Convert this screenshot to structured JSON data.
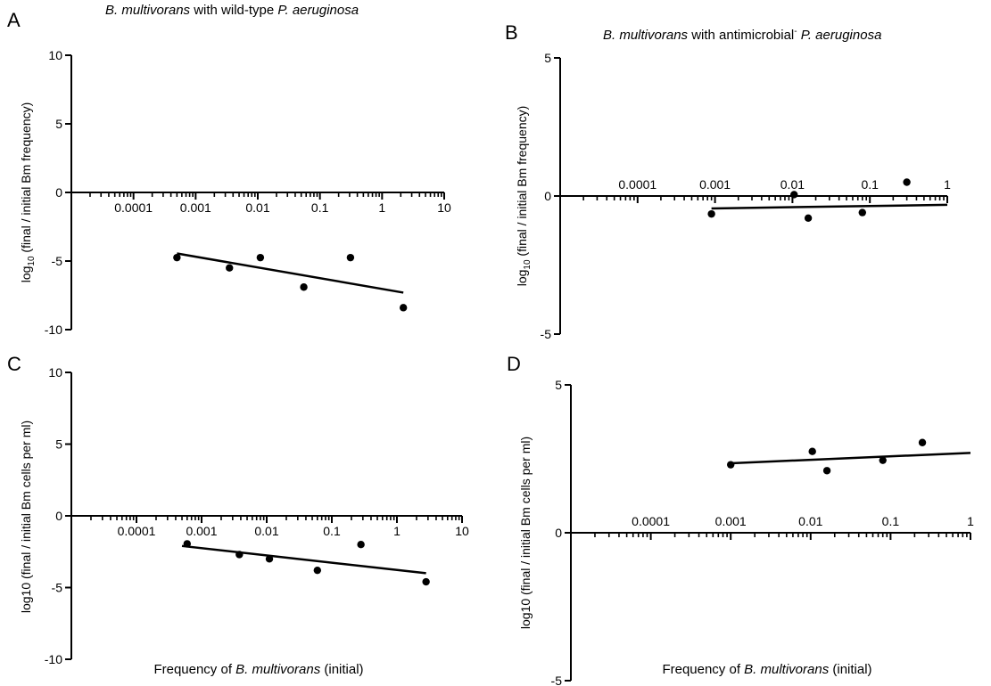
{
  "chart_data": [
    {
      "panel": "A",
      "type": "scatter",
      "title": {
        "prefix": "B. multivorans",
        "middle": " with wild-type ",
        "suffix": "P. aeruginosa"
      },
      "ylabel": {
        "base": "log",
        "sub": "10",
        "rest": " (final / initial Bm frequency)"
      },
      "xlabel": null,
      "xscale": "log",
      "xlim": [
        1e-05,
        10
      ],
      "ylim": [
        -10,
        10
      ],
      "yticks": [
        "10",
        "5",
        "0",
        "-5",
        "-10"
      ],
      "xticks": [
        "0.0001",
        "0.001",
        "0.01",
        "0.1",
        "1",
        "10"
      ],
      "points": [
        {
          "x": 0.0005,
          "y": -4.75
        },
        {
          "x": 0.0035,
          "y": -5.5
        },
        {
          "x": 0.011,
          "y": -4.75
        },
        {
          "x": 0.055,
          "y": -6.9
        },
        {
          "x": 0.31,
          "y": -4.75
        },
        {
          "x": 2.2,
          "y": -8.4
        }
      ],
      "fit_line": [
        {
          "x": 0.0005,
          "y": -4.45
        },
        {
          "x": 2.2,
          "y": -7.3
        }
      ]
    },
    {
      "panel": "B",
      "type": "scatter",
      "title": {
        "prefix": "B. multivorans",
        "middle": " with antimicrobial",
        "sup": "-",
        "suffix": " P. aeruginosa"
      },
      "ylabel": {
        "base": "log",
        "sub": "10",
        "rest": " (final / initial Bm frequency)"
      },
      "xlabel": null,
      "xscale": "log",
      "xlim": [
        1e-05,
        1
      ],
      "ylim": [
        -5,
        5
      ],
      "yticks": [
        "5",
        "0",
        "-5"
      ],
      "xticks": [
        "0.0001",
        "0.001",
        "0.01",
        "0.1",
        "1"
      ],
      "points": [
        {
          "x": 0.0009,
          "y": -0.65
        },
        {
          "x": 0.0105,
          "y": 0.05
        },
        {
          "x": 0.016,
          "y": -0.8
        },
        {
          "x": 0.08,
          "y": -0.6
        },
        {
          "x": 0.3,
          "y": 0.5
        }
      ],
      "fit_line": [
        {
          "x": 0.0009,
          "y": -0.45
        },
        {
          "x": 1,
          "y": -0.32
        }
      ]
    },
    {
      "panel": "C",
      "type": "scatter",
      "title": null,
      "ylabel": {
        "base": "log10 (final / initial Bm cells per ml)"
      },
      "xlabel": {
        "prefix": "Frequency of ",
        "italic": "B. multivorans",
        "suffix": " (initial)"
      },
      "xscale": "log",
      "xlim": [
        1e-05,
        10
      ],
      "ylim": [
        -10,
        10
      ],
      "yticks": [
        "10",
        "5",
        "0",
        "-5",
        "-10"
      ],
      "xticks": [
        "0.0001",
        "0.001",
        "0.01",
        "0.1",
        "1",
        "10"
      ],
      "points": [
        {
          "x": 0.0006,
          "y": -1.95
        },
        {
          "x": 0.0038,
          "y": -2.7
        },
        {
          "x": 0.011,
          "y": -3.0
        },
        {
          "x": 0.06,
          "y": -3.8
        },
        {
          "x": 0.28,
          "y": -2.0
        },
        {
          "x": 2.8,
          "y": -4.6
        }
      ],
      "fit_line": [
        {
          "x": 0.0005,
          "y": -2.1
        },
        {
          "x": 2.8,
          "y": -4.0
        }
      ]
    },
    {
      "panel": "D",
      "type": "scatter",
      "title": null,
      "ylabel": {
        "base": "log10 (final / initial Bm cells per ml)"
      },
      "xlabel": {
        "prefix": "Frequency of ",
        "italic": "B. multivorans",
        "suffix": " (initial)"
      },
      "xscale": "log",
      "xlim": [
        1e-05,
        1
      ],
      "ylim": [
        -5,
        5
      ],
      "yticks": [
        "5",
        "0",
        "-5"
      ],
      "xticks": [
        "0.0001",
        "0.001",
        "0.01",
        "0.1",
        "1"
      ],
      "points": [
        {
          "x": 0.001,
          "y": 2.3
        },
        {
          "x": 0.0105,
          "y": 2.75
        },
        {
          "x": 0.016,
          "y": 2.1
        },
        {
          "x": 0.08,
          "y": 2.45
        },
        {
          "x": 0.25,
          "y": 3.05
        }
      ],
      "fit_line": [
        {
          "x": 0.001,
          "y": 2.35
        },
        {
          "x": 1,
          "y": 2.7
        }
      ]
    }
  ]
}
